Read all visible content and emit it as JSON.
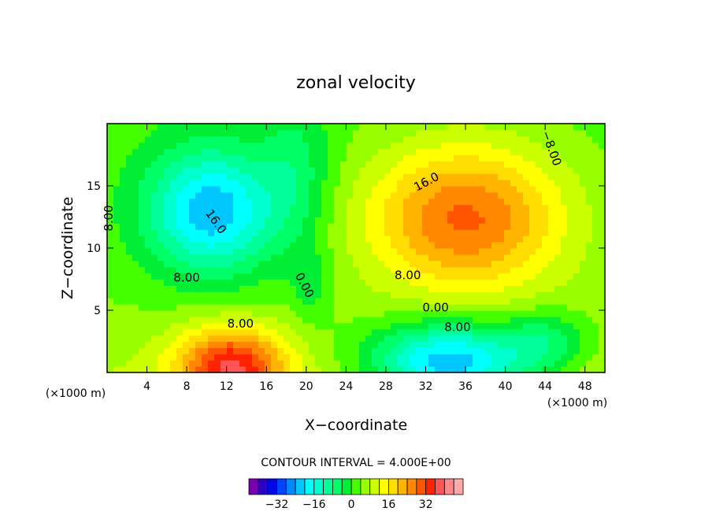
{
  "chart_data": {
    "type": "heatmap",
    "title": "zonal velocity",
    "xlabel": "X−coordinate",
    "ylabel": "Z−coordinate",
    "x_unit_left": "(×1000 m)",
    "x_unit_right": "(×1000 m)",
    "z_unit_top": "(×1000 m)",
    "xlim": [
      0,
      50
    ],
    "ylim": [
      0,
      20
    ],
    "xticks": [
      4,
      8,
      12,
      16,
      20,
      24,
      28,
      32,
      36,
      40,
      44,
      48
    ],
    "yticks": [
      5,
      10,
      15
    ],
    "contour_interval_text": "CONTOUR INTERVAL = 4.000E+00",
    "contour_labels": [
      "16.0",
      "8.00",
      "0.00",
      "16.0",
      "8.00",
      "0.00",
      "8.00",
      "8.00",
      "−8.00",
      "8.00"
    ],
    "features": [
      {
        "type": "min",
        "x": 10.5,
        "z": 13.0,
        "value": -18
      },
      {
        "type": "max",
        "x": 36.0,
        "z": 12.5,
        "value": 22
      },
      {
        "type": "max",
        "x": 12.5,
        "z": 0.5,
        "value": 30
      },
      {
        "type": "min",
        "x": 34.5,
        "z": 0.8,
        "value": -26
      },
      {
        "type": "min",
        "x": 44.0,
        "z": 2.5,
        "value": -12
      },
      {
        "type": "min",
        "x": 19.0,
        "z": 16.0,
        "value": -8
      }
    ],
    "colorbar": {
      "colors": [
        "#7a00b4",
        "#2d00c8",
        "#0008e6",
        "#0044ff",
        "#0088ff",
        "#00c8ff",
        "#00ffff",
        "#00ffcc",
        "#00ff99",
        "#00ff66",
        "#00ee33",
        "#44ff00",
        "#99ff00",
        "#ccff00",
        "#ffff00",
        "#ffdd00",
        "#ffb400",
        "#ff8800",
        "#ff5500",
        "#ff2200",
        "#ff5555",
        "#ff8888",
        "#ffaaaa"
      ],
      "tick_labels": [
        "−32",
        "−16",
        "0",
        "16",
        "32"
      ],
      "tick_values": [
        -32,
        -16,
        0,
        16,
        32
      ],
      "min": -44,
      "max": 48
    }
  }
}
